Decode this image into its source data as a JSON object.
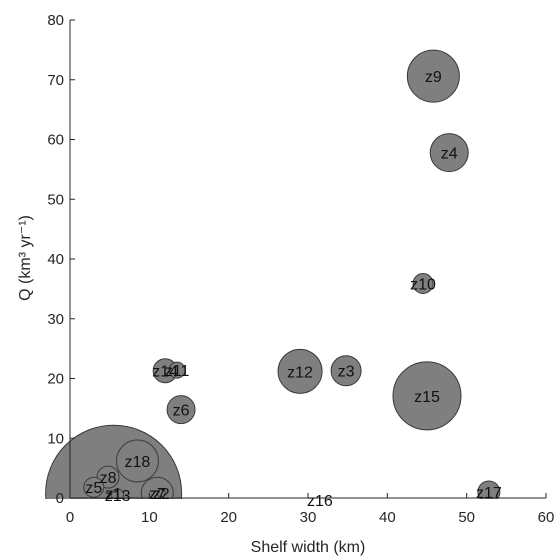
{
  "chart_data": {
    "type": "scatter",
    "variant": "bubble",
    "title": "",
    "xlabel": "Shelf width (km)",
    "ylabel": "Q (km³ yr⁻¹)",
    "xlim": [
      0,
      60
    ],
    "ylim": [
      0,
      80
    ],
    "x_ticks": [
      "0",
      "10",
      "20",
      "30",
      "40",
      "50",
      "60"
    ],
    "y_ticks": [
      "0",
      "10",
      "20",
      "30",
      "40",
      "50",
      "60",
      "70",
      "80"
    ],
    "grid": false,
    "marker_color": "#7f7f7f",
    "marker_edge_color": "#3a3a3a",
    "bubble_size_units": "relative radius, data shown by area",
    "points": [
      {
        "label": "z1",
        "x": 5.5,
        "y": 0.8,
        "r": 68
      },
      {
        "label": "z2",
        "x": 11.5,
        "y": 0.8,
        "r": 4
      },
      {
        "label": "z3",
        "x": 34.8,
        "y": 21.3,
        "r": 15
      },
      {
        "label": "z4",
        "x": 47.8,
        "y": 57.8,
        "r": 19
      },
      {
        "label": "z5",
        "x": 3.0,
        "y": 1.8,
        "r": 10
      },
      {
        "label": "z6",
        "x": 14.0,
        "y": 14.8,
        "r": 14
      },
      {
        "label": "z7",
        "x": 11.0,
        "y": 0.8,
        "r": 16
      },
      {
        "label": "z8",
        "x": 4.8,
        "y": 3.5,
        "r": 11
      },
      {
        "label": "z9",
        "x": 45.8,
        "y": 70.6,
        "r": 26
      },
      {
        "label": "z10",
        "x": 44.5,
        "y": 35.9,
        "r": 10
      },
      {
        "label": "z11",
        "x": 13.5,
        "y": 21.4,
        "r": 8
      },
      {
        "label": "z12",
        "x": 29.0,
        "y": 21.2,
        "r": 22
      },
      {
        "label": "z13",
        "x": 6.0,
        "y": 0.5,
        "r": 6
      },
      {
        "label": "z14",
        "x": 12.0,
        "y": 21.3,
        "r": 12
      },
      {
        "label": "z15",
        "x": 45.0,
        "y": 17.1,
        "r": 34
      },
      {
        "label": "z16",
        "x": 31.5,
        "y": -0.3,
        "r": 0
      },
      {
        "label": "z17",
        "x": 52.8,
        "y": 1.0,
        "r": 11
      },
      {
        "label": "z18",
        "x": 8.5,
        "y": 6.2,
        "r": 21
      }
    ]
  }
}
